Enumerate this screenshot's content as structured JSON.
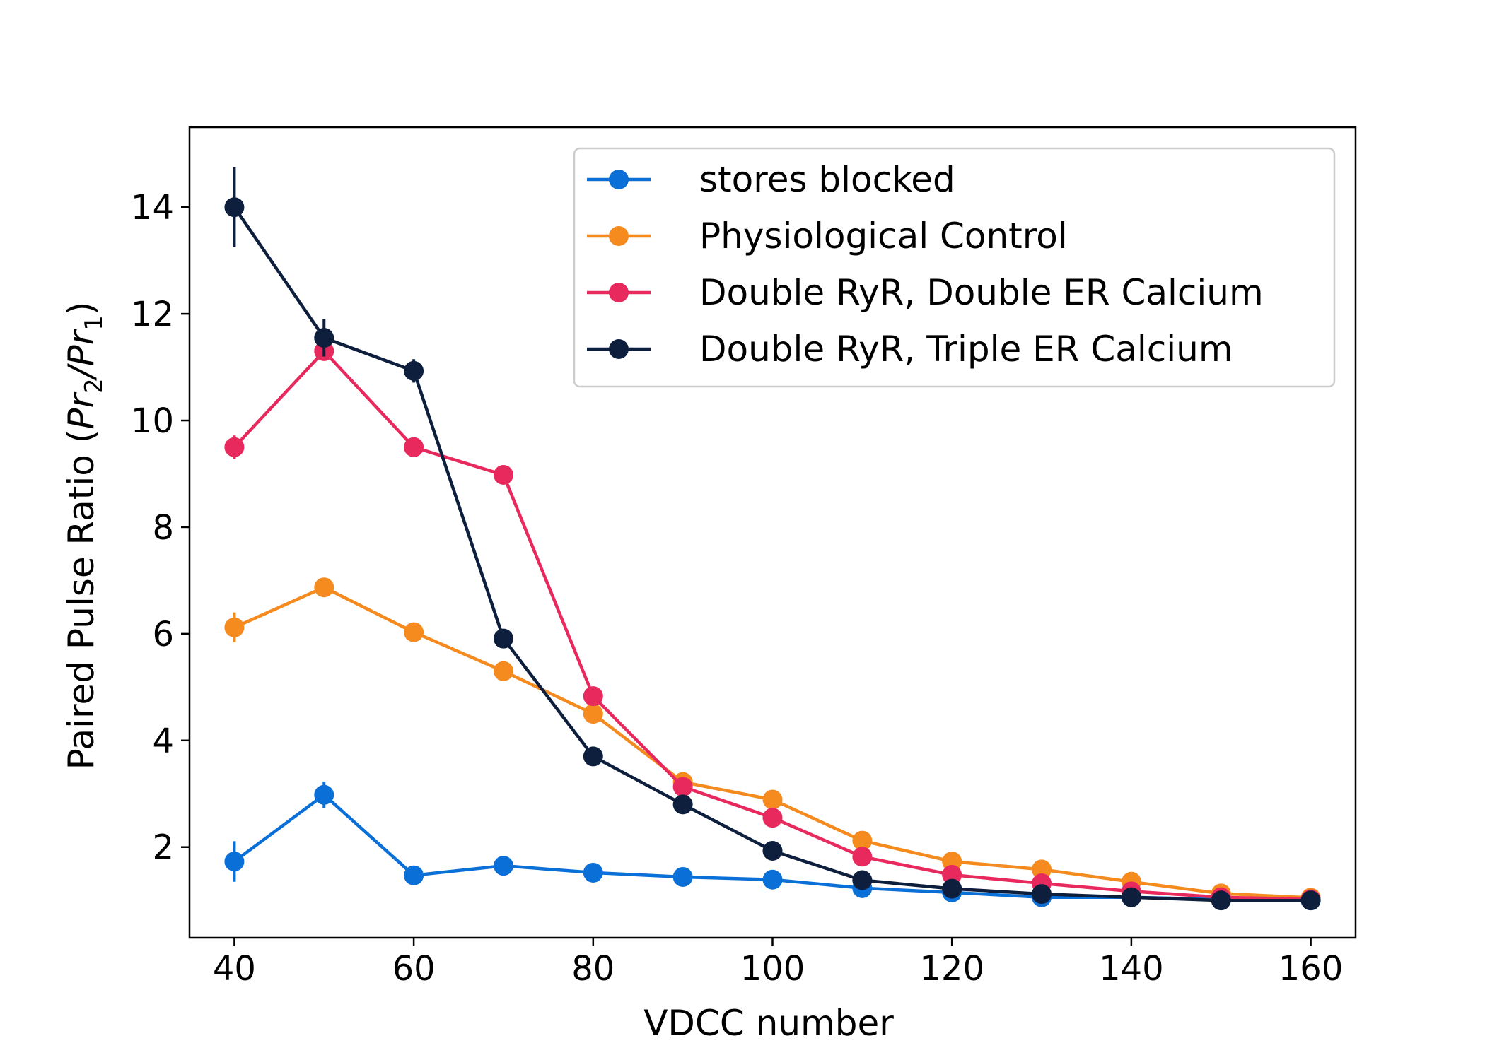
{
  "chart_data": {
    "type": "line",
    "title": "",
    "xlabel": "VDCC number",
    "ylabel": {
      "prefix": "Paired Pulse Ratio (",
      "num": "Pr",
      "num_sub": "2",
      "slash": "/",
      "den": "Pr",
      "den_sub": "1",
      "suffix": ")"
    },
    "xlim": [
      35,
      165
    ],
    "ylim": [
      0.3,
      15.5
    ],
    "xticks": [
      40,
      60,
      80,
      100,
      120,
      140,
      160
    ],
    "yticks": [
      2,
      4,
      6,
      8,
      10,
      12,
      14
    ],
    "grid": false,
    "legend_position": "top-right",
    "x": [
      40,
      50,
      60,
      70,
      80,
      90,
      100,
      110,
      120,
      130,
      140,
      150,
      160
    ],
    "series": [
      {
        "name": "stores blocked",
        "color": "#0a6fd6",
        "values": [
          1.73,
          2.98,
          1.47,
          1.65,
          1.52,
          1.44,
          1.39,
          1.23,
          1.15,
          1.06,
          1.06,
          1.02,
          1.0
        ],
        "err": [
          0.38,
          0.25,
          0.07,
          0.06,
          0.04,
          0.04,
          0.04,
          0.03,
          0.03,
          0.02,
          0.02,
          0.02,
          0.02
        ]
      },
      {
        "name": "Physiological Control",
        "color": "#f58a1f",
        "values": [
          6.12,
          6.87,
          6.03,
          5.3,
          4.5,
          3.22,
          2.89,
          2.12,
          1.73,
          1.58,
          1.35,
          1.13,
          1.05
        ],
        "err": [
          0.28,
          0.1,
          0.08,
          0.06,
          0.05,
          0.04,
          0.04,
          0.03,
          0.03,
          0.02,
          0.02,
          0.02,
          0.02
        ]
      },
      {
        "name": "Double RyR, Double ER Calcium",
        "color": "#e8295e",
        "values": [
          9.5,
          11.3,
          9.5,
          8.98,
          4.83,
          3.13,
          2.55,
          1.82,
          1.48,
          1.32,
          1.17,
          1.06,
          1.02
        ],
        "err": [
          0.22,
          0.15,
          0.08,
          0.06,
          0.06,
          0.04,
          0.04,
          0.03,
          0.03,
          0.02,
          0.02,
          0.02,
          0.02
        ]
      },
      {
        "name": "Double RyR, Triple ER Calcium",
        "color": "#0d1f3c",
        "values": [
          14.0,
          11.55,
          10.93,
          5.91,
          3.7,
          2.8,
          1.93,
          1.38,
          1.22,
          1.12,
          1.06,
          1.0,
          1.0
        ],
        "err": [
          0.75,
          0.35,
          0.22,
          0.08,
          0.05,
          0.04,
          0.04,
          0.03,
          0.03,
          0.02,
          0.02,
          0.02,
          0.02
        ]
      }
    ]
  }
}
